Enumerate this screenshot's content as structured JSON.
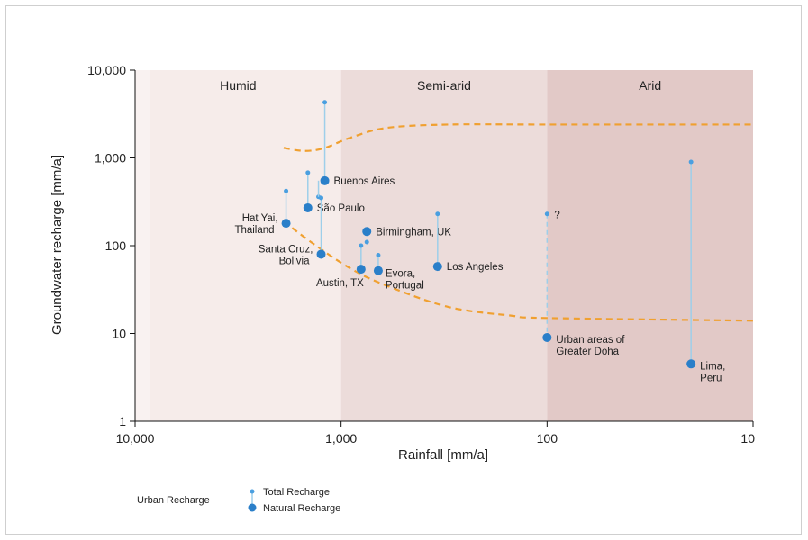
{
  "chart_data": {
    "type": "scatter",
    "xlabel": "Rainfall [mm/a]",
    "ylabel": "Groundwater recharge [mm/a]",
    "x_scale": "log",
    "x_reversed": true,
    "y_scale": "log",
    "xlim": [
      10000,
      10
    ],
    "ylim": [
      1,
      10000
    ],
    "x_ticks": [
      {
        "value": 10000,
        "label": "10,000"
      },
      {
        "value": 1000,
        "label": "1,000"
      },
      {
        "value": 100,
        "label": "100"
      },
      {
        "value": 10,
        "label": "10"
      }
    ],
    "y_ticks": [
      {
        "value": 1,
        "label": "1"
      },
      {
        "value": 10,
        "label": "10"
      },
      {
        "value": 100,
        "label": "100"
      },
      {
        "value": 1000,
        "label": "1,000"
      },
      {
        "value": 10000,
        "label": "10,000"
      }
    ],
    "zones": [
      {
        "name": "Humid",
        "from": 10000,
        "to": 1000,
        "color": "#f6ecea"
      },
      {
        "name": "Semi-arid",
        "from": 1000,
        "to": 100,
        "color": "#ecdcda"
      },
      {
        "name": "Arid",
        "from": 100,
        "to": 10,
        "color": "#e2c9c7"
      }
    ],
    "points": [
      {
        "label": "Buenos Aires",
        "label_lines": [
          "Buenos Aires"
        ],
        "label_anchor": "right",
        "rainfall": 1200,
        "natural": 550,
        "total": 4300,
        "extra_totals": [
          360
        ],
        "line_style": "solid"
      },
      {
        "label": "São Paulo",
        "label_lines": [
          "São Paulo"
        ],
        "label_anchor": "right",
        "rainfall": 1450,
        "natural": 270,
        "total": 680,
        "extra_totals": [],
        "line_style": "solid"
      },
      {
        "label": "Hat Yai, Thailand",
        "label_lines": [
          "Hat Yai,",
          "Thailand"
        ],
        "label_anchor": "left",
        "rainfall": 1850,
        "natural": 180,
        "total": 420,
        "extra_totals": [],
        "line_style": "solid"
      },
      {
        "label": "Santa Cruz, Bolivia",
        "label_lines": [
          "Santa Cruz,",
          "Bolivia"
        ],
        "label_anchor": "left",
        "rainfall": 1250,
        "natural": 80,
        "total": 350,
        "extra_totals": [],
        "line_style": "solid"
      },
      {
        "label": "Birmingham, UK",
        "label_lines": [
          "Birmingham, UK"
        ],
        "label_anchor": "right",
        "rainfall": 750,
        "natural": 145,
        "total": 145,
        "extra_totals": [
          110
        ],
        "line_style": "solid"
      },
      {
        "label": "Austin, TX",
        "label_lines": [
          "Austin, TX"
        ],
        "label_anchor": "below-left",
        "rainfall": 800,
        "natural": 54,
        "total": 100,
        "extra_totals": [],
        "line_style": "solid"
      },
      {
        "label": "Evora, Portugal",
        "label_lines": [
          "Evora,",
          "Portugal"
        ],
        "label_anchor": "below-right",
        "rainfall": 660,
        "natural": 52,
        "total": 78,
        "extra_totals": [],
        "line_style": "solid"
      },
      {
        "label": "Los Angeles",
        "label_lines": [
          "Los Angeles"
        ],
        "label_anchor": "right",
        "rainfall": 340,
        "natural": 58,
        "total": 230,
        "extra_totals": [],
        "line_style": "solid"
      },
      {
        "label": "Urban areas of Greater Doha",
        "label_lines": [
          "Urban areas of",
          "Greater Doha"
        ],
        "label_anchor": "right",
        "rainfall": 100,
        "natural": 9,
        "total": 230,
        "extra_totals": [],
        "line_style": "dashed",
        "total_annotation": "?"
      },
      {
        "label": "Lima, Peru",
        "label_lines": [
          "Lima,",
          "Peru"
        ],
        "label_anchor": "right",
        "rainfall": 20,
        "natural": 4.5,
        "total": 900,
        "extra_totals": [],
        "line_style": "solid"
      }
    ],
    "envelope": {
      "color": "#f0a030",
      "upper": [
        [
          1900,
          1300
        ],
        [
          1500,
          1200
        ],
        [
          1200,
          1300
        ],
        [
          900,
          1700
        ],
        [
          600,
          2200
        ],
        [
          300,
          2400
        ],
        [
          100,
          2400
        ],
        [
          10,
          2400
        ]
      ],
      "lower": [
        [
          1900,
          190
        ],
        [
          1400,
          110
        ],
        [
          900,
          55
        ],
        [
          600,
          35
        ],
        [
          300,
          20
        ],
        [
          150,
          16
        ],
        [
          100,
          15
        ],
        [
          10,
          14
        ]
      ]
    },
    "legend": {
      "title": "Urban Recharge",
      "items": [
        {
          "label": "Total Recharge",
          "marker": "small-dot"
        },
        {
          "label": "Natural Recharge",
          "marker": "large-dot"
        }
      ]
    },
    "colors": {
      "natural_point": "#2a7fc9",
      "total_point": "#4a9fe0",
      "connector": "#9ecfea"
    }
  }
}
